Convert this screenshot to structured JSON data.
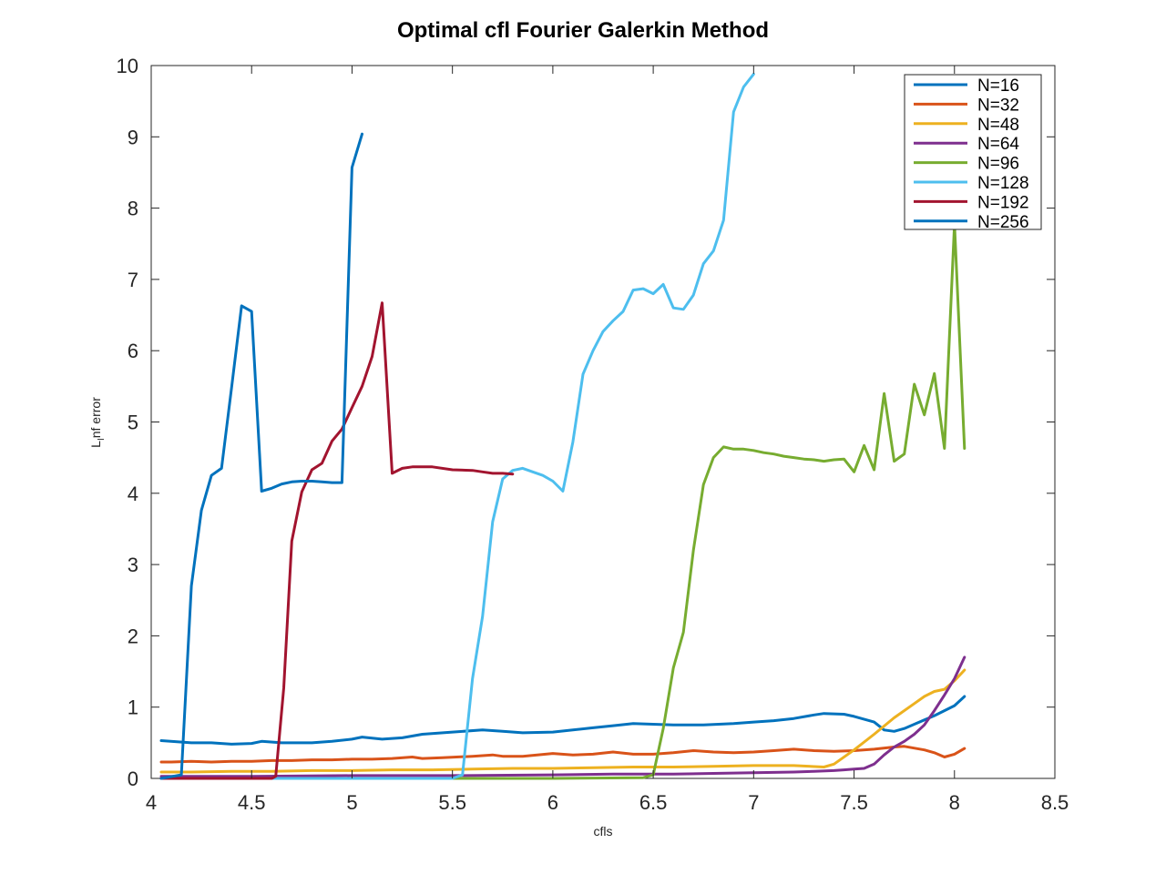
{
  "chart_data": {
    "type": "line",
    "title": "Optimal cfl Fourier Galerkin Method",
    "xlabel": "cfls",
    "ylabel_main": "L",
    "ylabel_sub": "I",
    "ylabel_rest": "nf error",
    "xlim": [
      4,
      8.5
    ],
    "ylim": [
      0,
      10
    ],
    "xticks": [
      "4",
      "4.5",
      "5",
      "5.5",
      "6",
      "6.5",
      "7",
      "7.5",
      "8",
      "8.5"
    ],
    "yticks": [
      "0",
      "1",
      "2",
      "3",
      "4",
      "5",
      "6",
      "7",
      "8",
      "9",
      "10"
    ],
    "grid": false,
    "legend_position": "top-right",
    "series": [
      {
        "name": "N=16",
        "color": "#0072BD",
        "points": [
          [
            4.05,
            0.53
          ],
          [
            4.2,
            0.5
          ],
          [
            4.3,
            0.5
          ],
          [
            4.4,
            0.48
          ],
          [
            4.5,
            0.49
          ],
          [
            4.55,
            0.52
          ],
          [
            4.65,
            0.5
          ],
          [
            4.8,
            0.5
          ],
          [
            4.9,
            0.52
          ],
          [
            5.0,
            0.55
          ],
          [
            5.05,
            0.58
          ],
          [
            5.15,
            0.55
          ],
          [
            5.25,
            0.57
          ],
          [
            5.35,
            0.62
          ],
          [
            5.5,
            0.65
          ],
          [
            5.65,
            0.68
          ],
          [
            5.75,
            0.66
          ],
          [
            5.85,
            0.64
          ],
          [
            6.0,
            0.65
          ],
          [
            6.1,
            0.68
          ],
          [
            6.2,
            0.71
          ],
          [
            6.3,
            0.74
          ],
          [
            6.4,
            0.77
          ],
          [
            6.5,
            0.76
          ],
          [
            6.6,
            0.75
          ],
          [
            6.75,
            0.75
          ],
          [
            6.9,
            0.77
          ],
          [
            7.0,
            0.79
          ],
          [
            7.1,
            0.81
          ],
          [
            7.2,
            0.84
          ],
          [
            7.3,
            0.89
          ],
          [
            7.35,
            0.91
          ],
          [
            7.45,
            0.9
          ],
          [
            7.5,
            0.87
          ],
          [
            7.6,
            0.79
          ],
          [
            7.65,
            0.68
          ],
          [
            7.7,
            0.66
          ],
          [
            7.75,
            0.7
          ],
          [
            7.8,
            0.76
          ],
          [
            7.9,
            0.88
          ],
          [
            8.0,
            1.02
          ],
          [
            8.05,
            1.15
          ]
        ]
      },
      {
        "name": "N=32",
        "color": "#D95319",
        "points": [
          [
            4.05,
            0.23
          ],
          [
            4.1,
            0.23
          ],
          [
            4.2,
            0.24
          ],
          [
            4.3,
            0.23
          ],
          [
            4.4,
            0.24
          ],
          [
            4.5,
            0.24
          ],
          [
            4.6,
            0.25
          ],
          [
            4.7,
            0.25
          ],
          [
            4.8,
            0.26
          ],
          [
            4.9,
            0.26
          ],
          [
            5.0,
            0.27
          ],
          [
            5.1,
            0.27
          ],
          [
            5.2,
            0.28
          ],
          [
            5.3,
            0.3
          ],
          [
            5.35,
            0.28
          ],
          [
            5.45,
            0.29
          ],
          [
            5.6,
            0.31
          ],
          [
            5.7,
            0.33
          ],
          [
            5.75,
            0.31
          ],
          [
            5.85,
            0.31
          ],
          [
            6.0,
            0.35
          ],
          [
            6.1,
            0.33
          ],
          [
            6.2,
            0.34
          ],
          [
            6.3,
            0.37
          ],
          [
            6.4,
            0.34
          ],
          [
            6.5,
            0.34
          ],
          [
            6.6,
            0.36
          ],
          [
            6.7,
            0.39
          ],
          [
            6.8,
            0.37
          ],
          [
            6.9,
            0.36
          ],
          [
            7.0,
            0.37
          ],
          [
            7.1,
            0.39
          ],
          [
            7.2,
            0.41
          ],
          [
            7.3,
            0.39
          ],
          [
            7.4,
            0.38
          ],
          [
            7.5,
            0.39
          ],
          [
            7.6,
            0.41
          ],
          [
            7.7,
            0.44
          ],
          [
            7.75,
            0.45
          ],
          [
            7.85,
            0.4
          ],
          [
            7.9,
            0.36
          ],
          [
            7.95,
            0.3
          ],
          [
            8.0,
            0.34
          ],
          [
            8.05,
            0.42
          ]
        ]
      },
      {
        "name": "N=48",
        "color": "#EDB120",
        "points": [
          [
            4.05,
            0.09
          ],
          [
            4.2,
            0.09
          ],
          [
            4.4,
            0.1
          ],
          [
            4.6,
            0.1
          ],
          [
            4.8,
            0.11
          ],
          [
            5.0,
            0.11
          ],
          [
            5.2,
            0.12
          ],
          [
            5.4,
            0.12
          ],
          [
            5.6,
            0.13
          ],
          [
            5.8,
            0.14
          ],
          [
            6.0,
            0.14
          ],
          [
            6.2,
            0.15
          ],
          [
            6.4,
            0.16
          ],
          [
            6.6,
            0.16
          ],
          [
            6.8,
            0.17
          ],
          [
            7.0,
            0.18
          ],
          [
            7.2,
            0.18
          ],
          [
            7.35,
            0.16
          ],
          [
            7.4,
            0.2
          ],
          [
            7.5,
            0.4
          ],
          [
            7.6,
            0.62
          ],
          [
            7.7,
            0.85
          ],
          [
            7.8,
            1.05
          ],
          [
            7.85,
            1.15
          ],
          [
            7.9,
            1.22
          ],
          [
            7.95,
            1.25
          ],
          [
            8.0,
            1.37
          ],
          [
            8.05,
            1.52
          ]
        ]
      },
      {
        "name": "N=64",
        "color": "#7E2F8E",
        "points": [
          [
            4.05,
            0.03
          ],
          [
            4.5,
            0.03
          ],
          [
            5.0,
            0.04
          ],
          [
            5.5,
            0.04
          ],
          [
            6.0,
            0.05
          ],
          [
            6.3,
            0.06
          ],
          [
            6.6,
            0.06
          ],
          [
            6.8,
            0.07
          ],
          [
            7.0,
            0.08
          ],
          [
            7.2,
            0.09
          ],
          [
            7.3,
            0.1
          ],
          [
            7.4,
            0.11
          ],
          [
            7.45,
            0.12
          ],
          [
            7.5,
            0.13
          ],
          [
            7.55,
            0.14
          ],
          [
            7.6,
            0.2
          ],
          [
            7.65,
            0.33
          ],
          [
            7.7,
            0.44
          ],
          [
            7.75,
            0.52
          ],
          [
            7.8,
            0.62
          ],
          [
            7.85,
            0.75
          ],
          [
            7.9,
            0.95
          ],
          [
            7.95,
            1.17
          ],
          [
            8.0,
            1.4
          ],
          [
            8.05,
            1.7
          ]
        ]
      },
      {
        "name": "N=96",
        "color": "#77AC30",
        "points": [
          [
            4.05,
            0.0
          ],
          [
            6.0,
            0.0
          ],
          [
            6.45,
            0.01
          ],
          [
            6.5,
            0.05
          ],
          [
            6.55,
            0.7
          ],
          [
            6.6,
            1.55
          ],
          [
            6.65,
            2.05
          ],
          [
            6.7,
            3.2
          ],
          [
            6.75,
            4.12
          ],
          [
            6.8,
            4.5
          ],
          [
            6.85,
            4.65
          ],
          [
            6.9,
            4.62
          ],
          [
            6.95,
            4.62
          ],
          [
            7.0,
            4.6
          ],
          [
            7.05,
            4.57
          ],
          [
            7.1,
            4.55
          ],
          [
            7.15,
            4.52
          ],
          [
            7.2,
            4.5
          ],
          [
            7.25,
            4.48
          ],
          [
            7.3,
            4.47
          ],
          [
            7.35,
            4.45
          ],
          [
            7.4,
            4.47
          ],
          [
            7.45,
            4.48
          ],
          [
            7.5,
            4.3
          ],
          [
            7.55,
            4.67
          ],
          [
            7.6,
            4.33
          ],
          [
            7.65,
            5.4
          ],
          [
            7.7,
            4.45
          ],
          [
            7.75,
            4.55
          ],
          [
            7.8,
            5.53
          ],
          [
            7.85,
            5.1
          ],
          [
            7.9,
            5.68
          ],
          [
            7.95,
            4.63
          ],
          [
            8.0,
            7.78
          ],
          [
            8.05,
            4.63
          ]
        ]
      },
      {
        "name": "N=128",
        "color": "#4DBEEE",
        "points": [
          [
            4.05,
            0.0
          ],
          [
            5.5,
            0.0
          ],
          [
            5.55,
            0.05
          ],
          [
            5.6,
            1.4
          ],
          [
            5.65,
            2.27
          ],
          [
            5.7,
            3.6
          ],
          [
            5.75,
            4.2
          ],
          [
            5.8,
            4.32
          ],
          [
            5.85,
            4.35
          ],
          [
            5.9,
            4.3
          ],
          [
            5.95,
            4.25
          ],
          [
            6.0,
            4.17
          ],
          [
            6.05,
            4.03
          ],
          [
            6.1,
            4.72
          ],
          [
            6.15,
            5.67
          ],
          [
            6.2,
            6.0
          ],
          [
            6.25,
            6.27
          ],
          [
            6.3,
            6.42
          ],
          [
            6.35,
            6.55
          ],
          [
            6.4,
            6.85
          ],
          [
            6.45,
            6.87
          ],
          [
            6.5,
            6.8
          ],
          [
            6.55,
            6.93
          ],
          [
            6.6,
            6.6
          ],
          [
            6.65,
            6.58
          ],
          [
            6.7,
            6.78
          ],
          [
            6.75,
            7.22
          ],
          [
            6.8,
            7.4
          ],
          [
            6.85,
            7.83
          ],
          [
            6.9,
            9.35
          ],
          [
            6.95,
            9.7
          ],
          [
            7.0,
            9.88
          ]
        ]
      },
      {
        "name": "N=192",
        "color": "#A2142F",
        "points": [
          [
            4.05,
            0.0
          ],
          [
            4.6,
            0.0
          ],
          [
            4.62,
            0.03
          ],
          [
            4.66,
            1.27
          ],
          [
            4.7,
            3.33
          ],
          [
            4.75,
            4.02
          ],
          [
            4.8,
            4.33
          ],
          [
            4.85,
            4.42
          ],
          [
            4.9,
            4.73
          ],
          [
            4.95,
            4.9
          ],
          [
            5.0,
            5.2
          ],
          [
            5.05,
            5.5
          ],
          [
            5.1,
            5.92
          ],
          [
            5.15,
            6.67
          ],
          [
            5.2,
            4.28
          ],
          [
            5.25,
            4.35
          ],
          [
            5.3,
            4.37
          ],
          [
            5.4,
            4.37
          ],
          [
            5.5,
            4.33
          ],
          [
            5.6,
            4.32
          ],
          [
            5.65,
            4.3
          ],
          [
            5.7,
            4.28
          ],
          [
            5.75,
            4.28
          ],
          [
            5.8,
            4.27
          ]
        ]
      },
      {
        "name": "N=256",
        "color": "#0072BD",
        "points": [
          [
            4.05,
            0.0
          ],
          [
            4.15,
            0.05
          ],
          [
            4.2,
            2.7
          ],
          [
            4.25,
            3.76
          ],
          [
            4.3,
            4.25
          ],
          [
            4.35,
            4.35
          ],
          [
            4.4,
            5.48
          ],
          [
            4.45,
            6.63
          ],
          [
            4.5,
            6.55
          ],
          [
            4.55,
            4.03
          ],
          [
            4.6,
            4.07
          ],
          [
            4.65,
            4.13
          ],
          [
            4.7,
            4.16
          ],
          [
            4.75,
            4.17
          ],
          [
            4.8,
            4.17
          ],
          [
            4.85,
            4.16
          ],
          [
            4.9,
            4.15
          ],
          [
            4.95,
            4.15
          ],
          [
            5.0,
            8.57
          ],
          [
            5.05,
            9.04
          ]
        ]
      }
    ]
  }
}
